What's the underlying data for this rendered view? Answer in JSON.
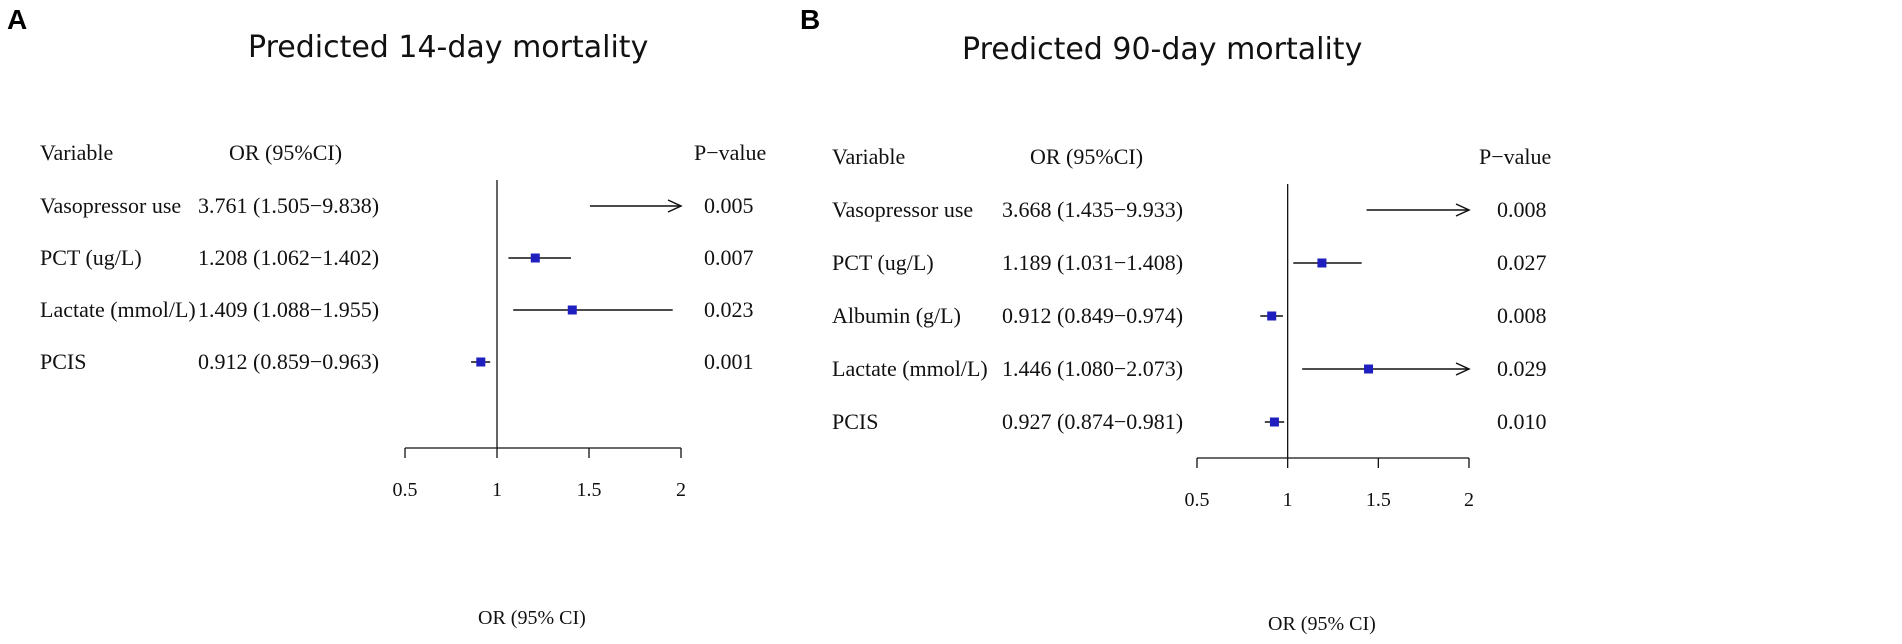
{
  "chart_data": [
    {
      "type": "forest",
      "panel_label": "A",
      "title": "Predicted 14-day mortality",
      "headers": {
        "variable": "Variable",
        "or": "OR (95%CI)",
        "p": "P−value"
      },
      "xlabel": "OR (95% CI)",
      "reference_line": 1,
      "xlim": [
        0.5,
        2
      ],
      "xticks": [
        0.5,
        1,
        1.5,
        2
      ],
      "xtick_labels": [
        "0.5",
        "1",
        "1.5",
        "2"
      ],
      "rows": [
        {
          "variable": "Vasopressor use",
          "or_text": "3.761 (1.505−9.838)",
          "p": "0.005",
          "or": 3.761,
          "low": 1.505,
          "high": 9.838
        },
        {
          "variable": "PCT (ug/L)",
          "or_text": "1.208 (1.062−1.402)",
          "p": "0.007",
          "or": 1.208,
          "low": 1.062,
          "high": 1.402
        },
        {
          "variable": "Lactate (mmol/L)",
          "or_text": "1.409 (1.088−1.955)",
          "p": "0.023",
          "or": 1.409,
          "low": 1.088,
          "high": 1.955
        },
        {
          "variable": "PCIS",
          "or_text": "0.912 (0.859−0.963)",
          "p": "0.001",
          "or": 0.912,
          "low": 0.859,
          "high": 0.963
        }
      ]
    },
    {
      "type": "forest",
      "panel_label": "B",
      "title": "Predicted 90-day mortality",
      "headers": {
        "variable": "Variable",
        "or": "OR (95%CI)",
        "p": "P−value"
      },
      "xlabel": "OR (95% CI)",
      "reference_line": 1,
      "xlim": [
        0.5,
        2
      ],
      "xticks": [
        0.5,
        1,
        1.5,
        2
      ],
      "xtick_labels": [
        "0.5",
        "1",
        "1.5",
        "2"
      ],
      "rows": [
        {
          "variable": "Vasopressor use",
          "or_text": "3.668 (1.435−9.933)",
          "p": "0.008",
          "or": 3.668,
          "low": 1.435,
          "high": 9.933
        },
        {
          "variable": "PCT (ug/L)",
          "or_text": "1.189 (1.031−1.408)",
          "p": "0.027",
          "or": 1.189,
          "low": 1.031,
          "high": 1.408
        },
        {
          "variable": "Albumin (g/L)",
          "or_text": "0.912 (0.849−0.974)",
          "p": "0.008",
          "or": 0.912,
          "low": 0.849,
          "high": 0.974
        },
        {
          "variable": "Lactate (mmol/L)",
          "or_text": "1.446 (1.080−2.073)",
          "p": "0.029",
          "or": 1.446,
          "low": 1.08,
          "high": 2.073
        },
        {
          "variable": "PCIS",
          "or_text": "0.927 (0.874−0.981)",
          "p": "0.010",
          "or": 0.927,
          "low": 0.874,
          "high": 0.981
        }
      ]
    }
  ],
  "colors": {
    "marker": "#1f1fbf",
    "line": "#111111"
  }
}
